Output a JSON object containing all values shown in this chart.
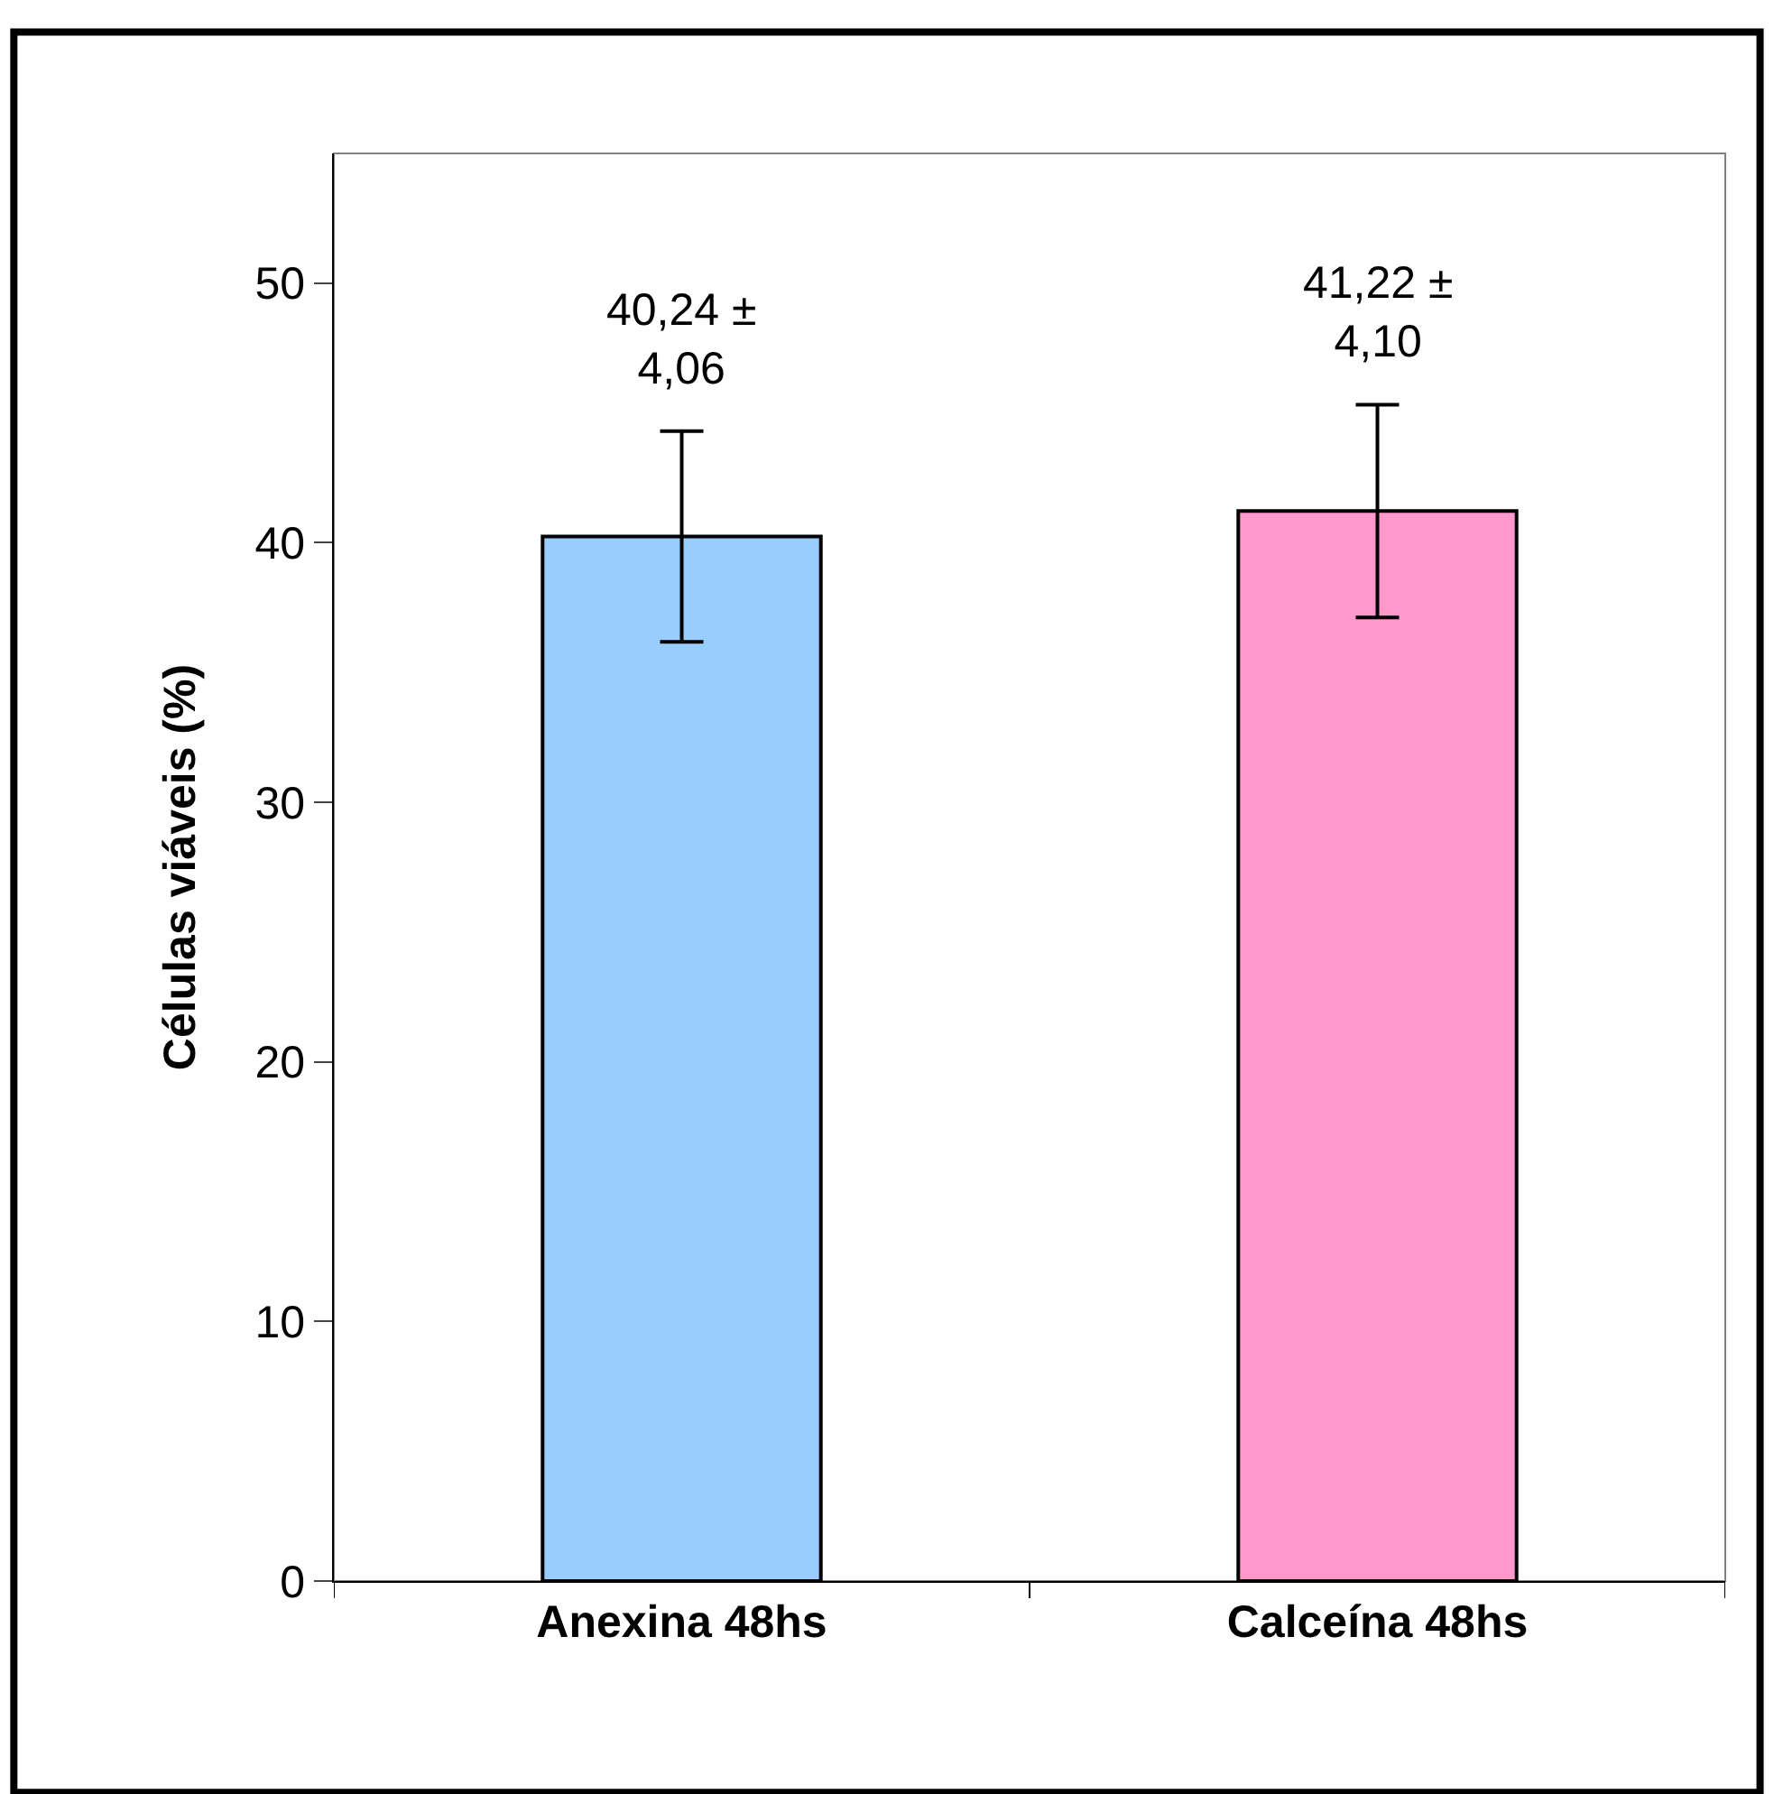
{
  "chart_data": {
    "type": "bar",
    "ylabel": "Células viáveis (%)",
    "categories": [
      "Anexina 48hs",
      "Calceína 48hs"
    ],
    "values": [
      40.24,
      41.22
    ],
    "colors": [
      "#99ccff",
      "#ff99cc"
    ],
    "errors": [
      4.06,
      4.1
    ],
    "value_labels": [
      "40,24 ±\n4,06",
      "41,22 ±\n4,10"
    ],
    "ylim": [
      0,
      55
    ],
    "yticks": [
      0,
      10,
      20,
      30,
      40,
      50
    ],
    "grid": false
  }
}
